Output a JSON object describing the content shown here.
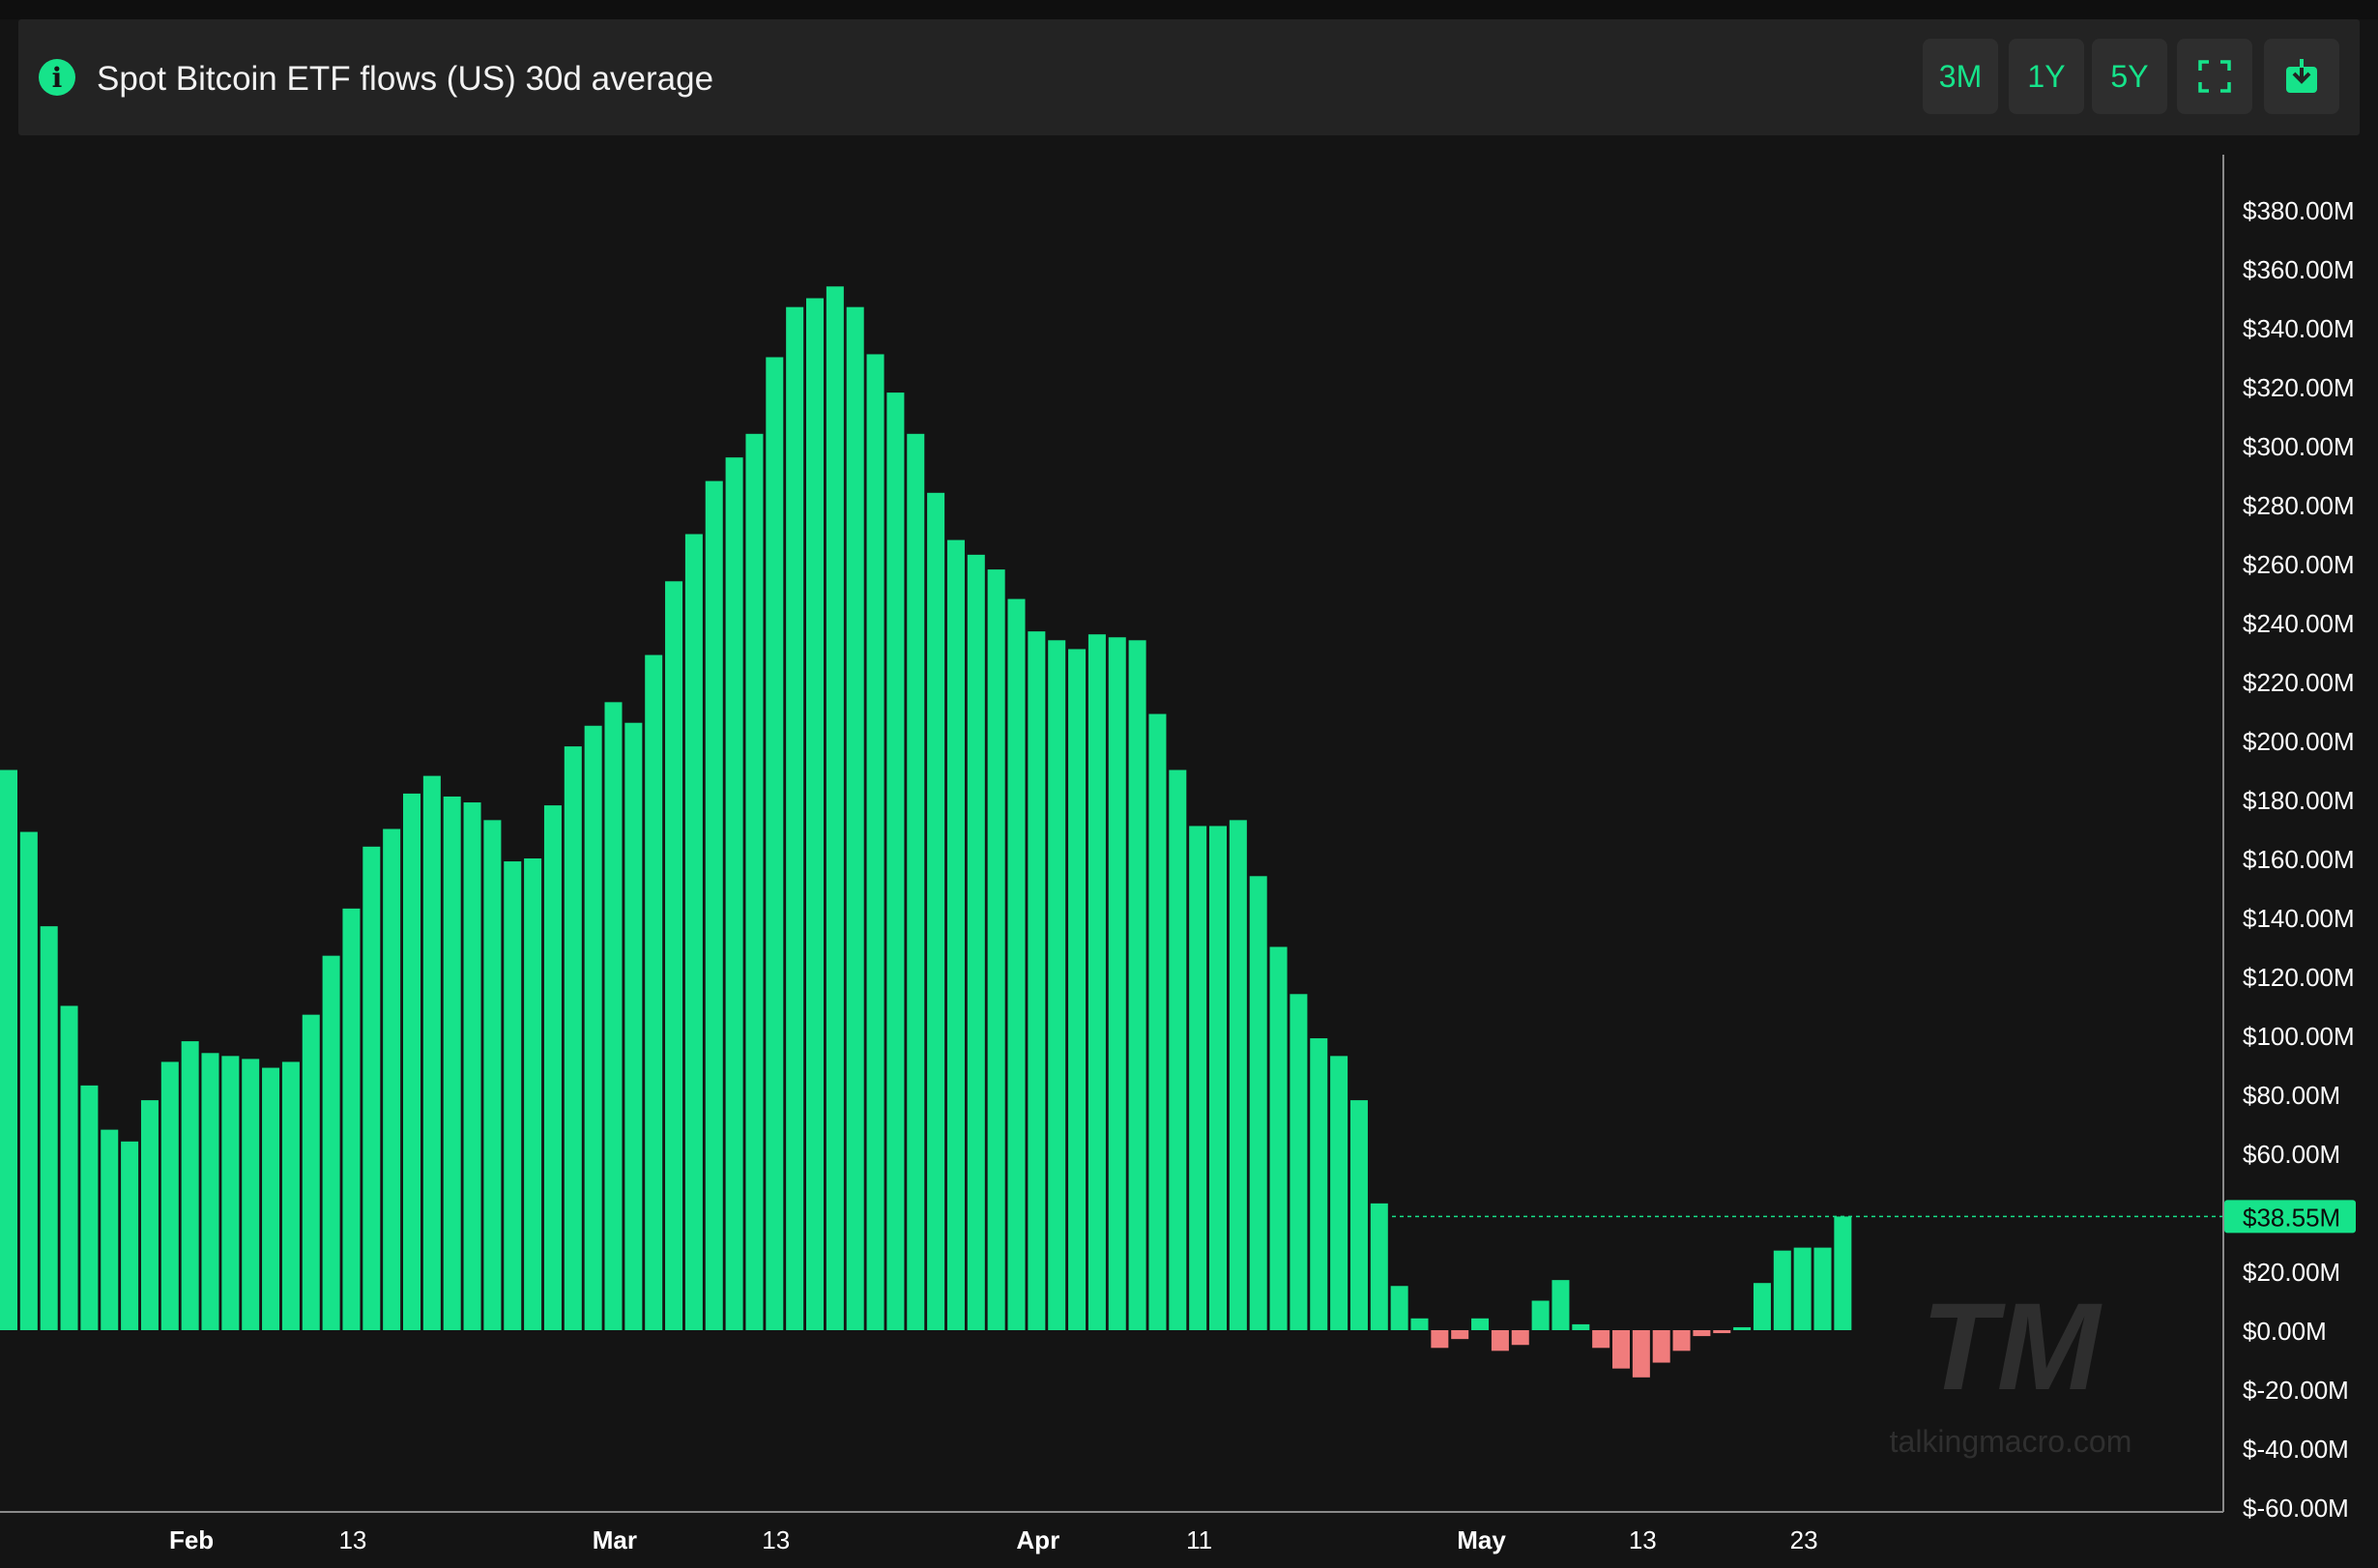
{
  "header": {
    "title": "Spot Bitcoin ETF flows (US) 30d average",
    "info_icon": "info-icon",
    "buttons": [
      {
        "label": "3M",
        "name": "range-3m-button"
      },
      {
        "label": "1Y",
        "name": "range-1y-button"
      },
      {
        "label": "5Y",
        "name": "range-5y-button"
      }
    ],
    "fullscreen_icon": "fullscreen-icon",
    "download_icon": "download-icon"
  },
  "colors": {
    "positive": "#16e38a",
    "negative": "#f07c7c",
    "background": "#141414",
    "axis_text": "#ffffff"
  },
  "watermark": {
    "logo": "TM",
    "text": "talkingmacro.com"
  },
  "chart_data": {
    "type": "bar",
    "ylim": [
      -60,
      400
    ],
    "y_ticks": [
      380,
      360,
      340,
      320,
      300,
      280,
      260,
      240,
      220,
      200,
      180,
      160,
      140,
      120,
      100,
      80,
      60,
      20,
      0,
      -20,
      -40,
      -60
    ],
    "y_tick_labels": [
      "$380.00M",
      "$360.00M",
      "$340.00M",
      "$320.00M",
      "$300.00M",
      "$280.00M",
      "$260.00M",
      "$240.00M",
      "$220.00M",
      "$200.00M",
      "$180.00M",
      "$160.00M",
      "$140.00M",
      "$120.00M",
      "$100.00M",
      "$80.00M",
      "$60.00M",
      "$20.00M",
      "$0.00M",
      "$-20.00M",
      "$-40.00M",
      "$-60.00M"
    ],
    "x_tick_labels": [
      {
        "label": "Feb",
        "index": 9.5,
        "bold": true
      },
      {
        "label": "13",
        "index": 17.5,
        "bold": false
      },
      {
        "label": "Mar",
        "index": 30.5,
        "bold": true
      },
      {
        "label": "13",
        "index": 38.5,
        "bold": false
      },
      {
        "label": "Apr",
        "index": 51.5,
        "bold": true
      },
      {
        "label": "11",
        "index": 59.5,
        "bold": false
      },
      {
        "label": "May",
        "index": 73.5,
        "bold": true
      },
      {
        "label": "13",
        "index": 81.5,
        "bold": false
      },
      {
        "label": "23",
        "index": 89.5,
        "bold": false
      }
    ],
    "values": [
      190,
      169,
      137,
      110,
      83,
      68,
      64,
      78,
      91,
      98,
      94,
      93,
      92,
      89,
      91,
      107,
      127,
      143,
      164,
      170,
      182,
      188,
      181,
      179,
      173,
      159,
      160,
      178,
      198,
      205,
      213,
      206,
      229,
      254,
      270,
      288,
      296,
      304,
      330,
      347,
      350,
      354,
      347,
      331,
      318,
      304,
      284,
      268,
      263,
      258,
      248,
      237,
      234,
      231,
      236,
      235,
      234,
      209,
      190,
      171,
      171,
      173,
      154,
      130,
      114,
      99,
      93,
      78,
      43,
      15,
      4,
      -6,
      -3,
      4,
      -7,
      -5,
      10,
      17,
      2,
      -6,
      -13,
      -16,
      -11,
      -7,
      -2,
      -1,
      1,
      16,
      27,
      28,
      28,
      38.55
    ],
    "last_value_label": "$38.55M",
    "last_value": 38.55
  }
}
